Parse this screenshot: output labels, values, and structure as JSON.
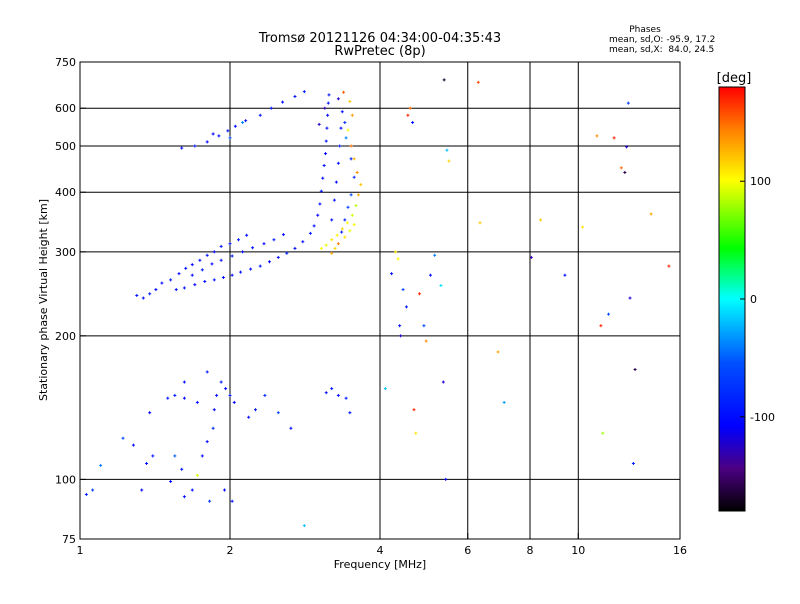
{
  "header": {
    "title_line1": "Tromsø 20121126 04:34:00-04:35:43",
    "title_line2": "RwPretec (8p)"
  },
  "stats": {
    "heading": "Phases",
    "line1": "mean, sd,O: -95.9, 17.2",
    "line2": "mean, sd,X:  84.0, 24.5"
  },
  "colorbar": {
    "label": "[deg]",
    "min": -180,
    "max": 180,
    "ticks": [
      {
        "value": 100,
        "label": "100"
      },
      {
        "value": 0,
        "label": "0"
      },
      {
        "value": -100,
        "label": "-100"
      }
    ]
  },
  "chart_data": {
    "type": "scatter",
    "xlabel": "Frequency [MHz]",
    "ylabel": "Stationary phase Virtual Height [km]",
    "x_scale": "log",
    "y_scale": "log",
    "xlim": [
      1,
      16
    ],
    "ylim": [
      75,
      750
    ],
    "grid": true,
    "x_ticks": [
      {
        "value": 1,
        "label": "1"
      },
      {
        "value": 2,
        "label": "2"
      },
      {
        "value": 4,
        "label": "4"
      },
      {
        "value": 6,
        "label": "6"
      },
      {
        "value": 8,
        "label": "8"
      },
      {
        "value": 10,
        "label": "10"
      },
      {
        "value": 16,
        "label": "16"
      }
    ],
    "y_ticks": [
      {
        "value": 75,
        "label": "75"
      },
      {
        "value": 100,
        "label": "100"
      },
      {
        "value": 200,
        "label": "200"
      },
      {
        "value": 300,
        "label": "300"
      },
      {
        "value": 400,
        "label": "400"
      },
      {
        "value": 500,
        "label": "500"
      },
      {
        "value": 600,
        "label": "600"
      },
      {
        "value": 750,
        "label": "750"
      }
    ],
    "x_grid": [
      2,
      4,
      6,
      8,
      10
    ],
    "y_grid": [
      100,
      200,
      300,
      400,
      500,
      600
    ],
    "points": [
      [
        1.3,
        243,
        -95
      ],
      [
        1.34,
        240,
        -100
      ],
      [
        1.38,
        245,
        -92
      ],
      [
        1.42,
        250,
        -105
      ],
      [
        1.46,
        258,
        -98
      ],
      [
        1.52,
        262,
        -90
      ],
      [
        1.58,
        270,
        -102
      ],
      [
        1.63,
        277,
        -95
      ],
      [
        1.68,
        282,
        -110
      ],
      [
        1.74,
        288,
        -97
      ],
      [
        1.8,
        295,
        -92
      ],
      [
        1.86,
        300,
        -104
      ],
      [
        1.92,
        308,
        -96
      ],
      [
        2.0,
        312,
        -99
      ],
      [
        2.08,
        318,
        -93
      ],
      [
        2.16,
        325,
        -101
      ],
      [
        1.56,
        250,
        -100
      ],
      [
        1.62,
        252,
        -94
      ],
      [
        1.7,
        256,
        -106
      ],
      [
        1.78,
        260,
        -98
      ],
      [
        1.86,
        262,
        -91
      ],
      [
        1.94,
        265,
        -103
      ],
      [
        2.02,
        268,
        -97
      ],
      [
        2.1,
        272,
        -92
      ],
      [
        2.2,
        276,
        -100
      ],
      [
        2.3,
        280,
        -95
      ],
      [
        2.4,
        286,
        -108
      ],
      [
        2.5,
        292,
        -97
      ],
      [
        2.6,
        298,
        -90
      ],
      [
        2.7,
        305,
        -102
      ],
      [
        2.8,
        315,
        -96
      ],
      [
        2.9,
        328,
        -93
      ],
      [
        1.68,
        268,
        -100
      ],
      [
        1.76,
        275,
        -94
      ],
      [
        1.84,
        283,
        -104
      ],
      [
        1.92,
        288,
        -97
      ],
      [
        2.02,
        294,
        -91
      ],
      [
        2.12,
        300,
        -103
      ],
      [
        2.22,
        306,
        -96
      ],
      [
        2.34,
        312,
        -99
      ],
      [
        2.45,
        318,
        -92
      ],
      [
        2.56,
        326,
        -101
      ],
      [
        2.95,
        340,
        -95
      ],
      [
        3.0,
        358,
        -105
      ],
      [
        3.03,
        378,
        -98
      ],
      [
        3.05,
        402,
        -92
      ],
      [
        3.07,
        428,
        -101
      ],
      [
        3.09,
        455,
        -96
      ],
      [
        3.11,
        482,
        -110
      ],
      [
        3.12,
        512,
        -94
      ],
      [
        3.13,
        545,
        -99
      ],
      [
        3.14,
        580,
        -103
      ],
      [
        3.15,
        615,
        -96
      ],
      [
        3.16,
        640,
        -91
      ],
      [
        3.2,
        350,
        -100
      ],
      [
        3.24,
        385,
        -95
      ],
      [
        3.27,
        420,
        -104
      ],
      [
        3.3,
        460,
        -98
      ],
      [
        3.32,
        500,
        -93
      ],
      [
        3.34,
        545,
        -101
      ],
      [
        3.36,
        590,
        -97
      ],
      [
        3.3,
        628,
        -120
      ],
      [
        3.1,
        600,
        -130
      ],
      [
        3.02,
        555,
        -125
      ],
      [
        3.35,
        330,
        -90
      ],
      [
        3.4,
        350,
        -85
      ],
      [
        3.45,
        372,
        -70
      ],
      [
        3.5,
        395,
        -60
      ],
      [
        3.55,
        430,
        -80
      ],
      [
        3.5,
        470,
        -85
      ],
      [
        3.42,
        520,
        -40
      ],
      [
        3.4,
        560,
        -75
      ],
      [
        3.05,
        305,
        100
      ],
      [
        3.12,
        310,
        95
      ],
      [
        3.2,
        318,
        110
      ],
      [
        3.28,
        325,
        105
      ],
      [
        3.36,
        335,
        115
      ],
      [
        3.44,
        345,
        100
      ],
      [
        3.52,
        358,
        90
      ],
      [
        3.58,
        375,
        85
      ],
      [
        3.62,
        395,
        130
      ],
      [
        3.66,
        415,
        120
      ],
      [
        3.6,
        440,
        140
      ],
      [
        3.55,
        470,
        125
      ],
      [
        3.5,
        500,
        150
      ],
      [
        3.45,
        540,
        100
      ],
      [
        3.52,
        580,
        135
      ],
      [
        3.48,
        620,
        120
      ],
      [
        3.38,
        648,
        155
      ],
      [
        3.2,
        298,
        130
      ],
      [
        3.25,
        305,
        115
      ],
      [
        3.3,
        312,
        145
      ],
      [
        3.4,
        322,
        110
      ],
      [
        3.48,
        332,
        95
      ],
      [
        3.55,
        342,
        105
      ],
      [
        1.6,
        495,
        -100
      ],
      [
        1.7,
        500,
        -95
      ],
      [
        1.8,
        510,
        -104
      ],
      [
        1.9,
        525,
        -98
      ],
      [
        1.98,
        538,
        -92
      ],
      [
        2.05,
        550,
        -101
      ],
      [
        2.15,
        565,
        -96
      ],
      [
        2.3,
        580,
        -99
      ],
      [
        2.42,
        600,
        -93
      ],
      [
        2.55,
        618,
        -102
      ],
      [
        2.7,
        635,
        -97
      ],
      [
        2.82,
        650,
        -91
      ],
      [
        2.0,
        520,
        -60
      ],
      [
        1.85,
        530,
        -110
      ],
      [
        2.12,
        560,
        -40
      ],
      [
        1.03,
        93,
        -90
      ],
      [
        1.06,
        95,
        -70
      ],
      [
        1.1,
        107,
        -40
      ],
      [
        1.22,
        122,
        -60
      ],
      [
        1.28,
        118,
        -100
      ],
      [
        1.33,
        95,
        -105
      ],
      [
        1.36,
        108,
        -98
      ],
      [
        1.4,
        112,
        -94
      ],
      [
        1.38,
        138,
        -110
      ],
      [
        1.5,
        148,
        -92
      ],
      [
        1.52,
        99,
        -103
      ],
      [
        1.55,
        112,
        -50
      ],
      [
        1.6,
        105,
        -96
      ],
      [
        1.62,
        92,
        -101
      ],
      [
        1.68,
        95,
        -99
      ],
      [
        1.72,
        102,
        90
      ],
      [
        1.76,
        112,
        -95
      ],
      [
        1.8,
        120,
        -104
      ],
      [
        1.85,
        128,
        -80
      ],
      [
        1.88,
        150,
        -98
      ],
      [
        1.92,
        160,
        -92
      ],
      [
        1.96,
        155,
        -101
      ],
      [
        2.0,
        150,
        -96
      ],
      [
        2.04,
        145,
        -110
      ],
      [
        1.95,
        95,
        -103
      ],
      [
        2.02,
        90,
        -97
      ],
      [
        1.82,
        90,
        -70
      ],
      [
        1.62,
        160,
        -100
      ],
      [
        1.55,
        150,
        -93
      ],
      [
        1.62,
        148,
        -105
      ],
      [
        1.72,
        145,
        -98
      ],
      [
        1.8,
        168,
        -92
      ],
      [
        1.86,
        140,
        -104
      ],
      [
        2.18,
        135,
        -102
      ],
      [
        2.25,
        140,
        -95
      ],
      [
        2.35,
        150,
        -80
      ],
      [
        2.5,
        138,
        -60
      ],
      [
        2.65,
        128,
        -100
      ],
      [
        2.82,
        80,
        -20
      ],
      [
        3.12,
        152,
        -98
      ],
      [
        3.2,
        155,
        -93
      ],
      [
        3.3,
        150,
        -101
      ],
      [
        3.42,
        148,
        -90
      ],
      [
        3.48,
        138,
        -95
      ],
      [
        4.1,
        155,
        -20
      ],
      [
        4.22,
        270,
        -100
      ],
      [
        4.3,
        300,
        110
      ],
      [
        4.35,
        290,
        100
      ],
      [
        4.38,
        210,
        -100
      ],
      [
        4.4,
        200,
        -120
      ],
      [
        4.45,
        250,
        -60
      ],
      [
        4.52,
        230,
        -90
      ],
      [
        4.55,
        580,
        170
      ],
      [
        4.6,
        600,
        150
      ],
      [
        4.65,
        560,
        -95
      ],
      [
        4.68,
        140,
        170
      ],
      [
        4.72,
        125,
        110
      ],
      [
        4.8,
        245,
        170
      ],
      [
        4.9,
        210,
        -60
      ],
      [
        4.95,
        195,
        140
      ],
      [
        5.05,
        268,
        -100
      ],
      [
        5.15,
        295,
        -40
      ],
      [
        5.3,
        255,
        -10
      ],
      [
        5.36,
        160,
        -120
      ],
      [
        5.42,
        100,
        -110
      ],
      [
        5.45,
        490,
        -20
      ],
      [
        5.5,
        465,
        115
      ],
      [
        5.38,
        688,
        -170
      ],
      [
        6.3,
        680,
        160
      ],
      [
        6.35,
        345,
        120
      ],
      [
        6.9,
        185,
        130
      ],
      [
        7.1,
        145,
        -30
      ],
      [
        8.05,
        292,
        -130
      ],
      [
        8.4,
        350,
        120
      ],
      [
        9.4,
        268,
        -100
      ],
      [
        10.2,
        338,
        110
      ],
      [
        10.9,
        525,
        140
      ],
      [
        11.1,
        210,
        170
      ],
      [
        11.2,
        125,
        80
      ],
      [
        11.5,
        222,
        -60
      ],
      [
        11.8,
        520,
        170
      ],
      [
        12.2,
        450,
        150
      ],
      [
        12.4,
        440,
        -160
      ],
      [
        12.5,
        498,
        -120
      ],
      [
        12.6,
        615,
        -70
      ],
      [
        12.7,
        240,
        -120
      ],
      [
        12.9,
        108,
        -90
      ],
      [
        13.0,
        170,
        -160
      ],
      [
        14.0,
        360,
        130
      ],
      [
        15.2,
        280,
        170
      ]
    ]
  }
}
